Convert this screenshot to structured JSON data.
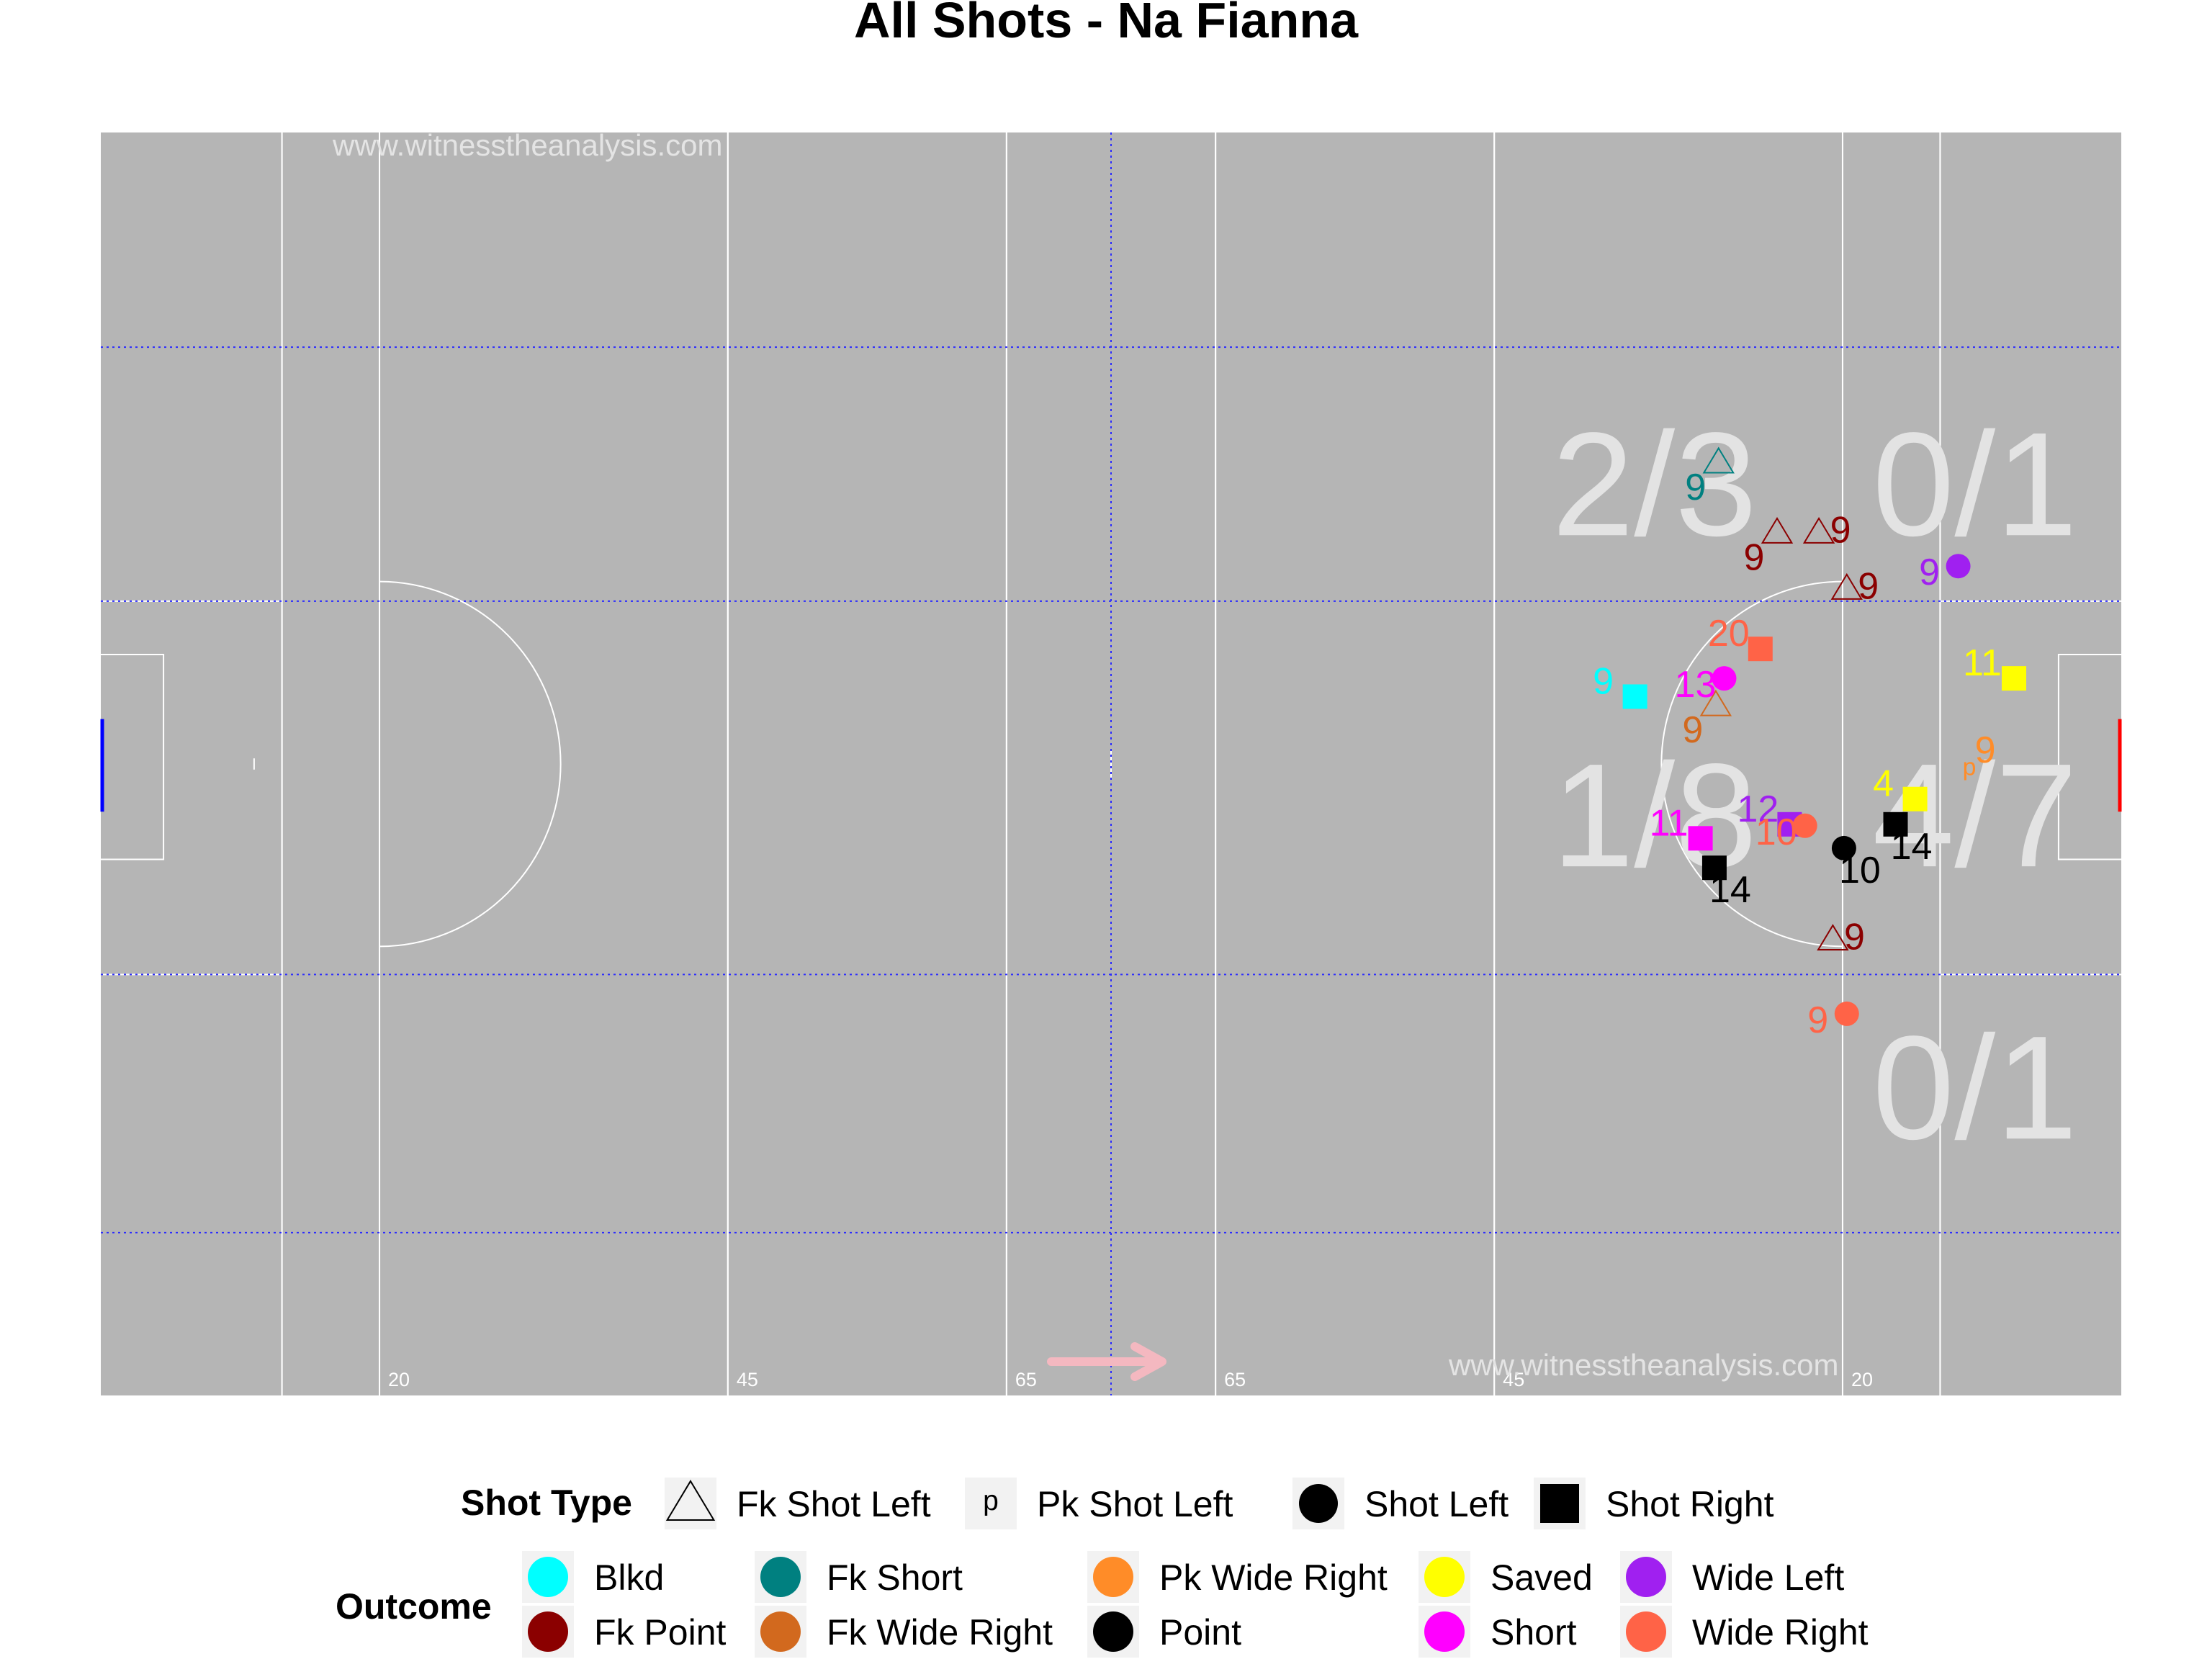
{
  "title": "All Shots - Na Fianna",
  "watermark": "www.witnesstheanalysis.com",
  "pitch_labels": [
    "20",
    "45",
    "65",
    "65",
    "45",
    "20"
  ],
  "zone_stats": [
    "2/3",
    "0/1",
    "1/8",
    "4/7",
    "0/1"
  ],
  "colors": {
    "pitch": "#b5b5b5",
    "lines": "#ffffff",
    "grid": "#2a2aff",
    "arrow": "#f4b8c0",
    "left_goal": "#0000ff",
    "right_goal": "#ff0000"
  },
  "legend": {
    "shot_type_title": "Shot Type",
    "shot_types": [
      {
        "label": "Fk Shot Left",
        "shape": "triangle"
      },
      {
        "label": "Pk Shot Left",
        "shape": "p"
      },
      {
        "label": "Shot Left",
        "shape": "circle"
      },
      {
        "label": "Shot Right",
        "shape": "square"
      }
    ],
    "outcome_title": "Outcome",
    "outcomes": [
      {
        "label": "Blkd",
        "color": "#00ffff"
      },
      {
        "label": "Fk Point",
        "color": "#8b0000"
      },
      {
        "label": "Fk Short",
        "color": "#008080"
      },
      {
        "label": "Fk Wide Right",
        "color": "#d2691e"
      },
      {
        "label": "Pk Wide Right",
        "color": "#ff8c28"
      },
      {
        "label": "Point",
        "color": "#000000"
      },
      {
        "label": "Saved",
        "color": "#ffff00"
      },
      {
        "label": "Short",
        "color": "#ff00ff"
      },
      {
        "label": "Wide Left",
        "color": "#a020f0"
      },
      {
        "label": "Wide Right",
        "color": "#ff6347"
      }
    ]
  },
  "chart_data": {
    "type": "scatter",
    "title": "All Shots - Na Fianna",
    "xlabel": "",
    "ylabel": "",
    "xlim": [
      0,
      145
    ],
    "ylim": [
      0,
      90
    ],
    "grid": true,
    "pitch_markings": {
      "x_lines": [
        13,
        20,
        45,
        65,
        80,
        100,
        125,
        132
      ],
      "x_line_labels": [
        {
          "x": 20,
          "text": "20"
        },
        {
          "x": 45,
          "text": "45"
        },
        {
          "x": 65,
          "text": "65"
        },
        {
          "x": 80,
          "text": "65"
        },
        {
          "x": 100,
          "text": "45"
        },
        {
          "x": 125,
          "text": "20"
        }
      ],
      "y_grid": [
        15.3,
        33.4,
        60,
        78.4
      ],
      "x_grid": [
        72.5
      ],
      "arc_radius": 13,
      "big_box": [
        13,
        33.4,
        60
      ],
      "small_box": [
        4.5,
        37.2,
        51.8
      ]
    },
    "zone_stats": [
      {
        "x": 111.5,
        "y": 25,
        "text": "2/3"
      },
      {
        "x": 134.5,
        "y": 25,
        "text": "0/1"
      },
      {
        "x": 111.5,
        "y": 48.6,
        "text": "1/8"
      },
      {
        "x": 134.5,
        "y": 48.6,
        "text": "4/7"
      },
      {
        "x": 134.5,
        "y": 68,
        "text": "0/1"
      }
    ],
    "attack_direction": "right",
    "series": [
      {
        "name": "Fk Point",
        "shape": "triangle",
        "color": "#8b0000",
        "points": [
          {
            "x": 120.3,
            "y": 28.5,
            "label": "9"
          },
          {
            "x": 123.3,
            "y": 28.5,
            "label": "9"
          },
          {
            "x": 125.3,
            "y": 32.5,
            "label": "9"
          },
          {
            "x": 124.3,
            "y": 57.5,
            "label": "9"
          }
        ]
      },
      {
        "name": "Fk Short",
        "shape": "triangle",
        "color": "#008080",
        "points": [
          {
            "x": 116.1,
            "y": 23.5,
            "label": "9"
          }
        ]
      },
      {
        "name": "Fk Wide Right",
        "shape": "triangle",
        "color": "#d2691e",
        "points": [
          {
            "x": 115.9,
            "y": 40.8,
            "label": "9"
          }
        ]
      },
      {
        "name": "Pk Wide Right",
        "shape": "p",
        "color": "#ff8c28",
        "points": [
          {
            "x": 134.1,
            "y": 45.4,
            "label": "9"
          }
        ]
      },
      {
        "name": "Wide Left",
        "shape": "circle",
        "color": "#a020f0",
        "points": [
          {
            "x": 133.3,
            "y": 30.9,
            "label": "9"
          }
        ]
      },
      {
        "name": "Wide Left",
        "shape": "square",
        "color": "#a020f0",
        "points": [
          {
            "x": 121.2,
            "y": 49.3,
            "label": "12"
          }
        ]
      },
      {
        "name": "Short",
        "shape": "circle",
        "color": "#ff00ff",
        "points": [
          {
            "x": 116.5,
            "y": 38.9,
            "label": "13"
          }
        ]
      },
      {
        "name": "Short",
        "shape": "square",
        "color": "#ff00ff",
        "points": [
          {
            "x": 114.8,
            "y": 50.3,
            "label": "11"
          }
        ]
      },
      {
        "name": "Wide Right",
        "shape": "square",
        "color": "#ff6347",
        "points": [
          {
            "x": 119.1,
            "y": 36.8,
            "label": "20"
          }
        ]
      },
      {
        "name": "Wide Right",
        "shape": "circle",
        "color": "#ff6347",
        "points": [
          {
            "x": 122.3,
            "y": 49.4,
            "label": "10"
          },
          {
            "x": 125.3,
            "y": 62.8,
            "label": "9"
          }
        ]
      },
      {
        "name": "Blkd",
        "shape": "square",
        "color": "#00ffff",
        "points": [
          {
            "x": 110.1,
            "y": 40.2,
            "label": "9"
          }
        ]
      },
      {
        "name": "Saved",
        "shape": "square",
        "color": "#ffff00",
        "points": [
          {
            "x": 137.3,
            "y": 38.9,
            "label": "11"
          },
          {
            "x": 130.2,
            "y": 47.5,
            "label": "4"
          }
        ]
      },
      {
        "name": "Point",
        "shape": "square",
        "color": "#000000",
        "points": [
          {
            "x": 115.8,
            "y": 52.4,
            "label": "14"
          },
          {
            "x": 128.8,
            "y": 49.3,
            "label": "14"
          }
        ]
      },
      {
        "name": "Point",
        "shape": "circle",
        "color": "#000000",
        "points": [
          {
            "x": 125.1,
            "y": 51.0,
            "label": "10"
          }
        ]
      }
    ]
  }
}
